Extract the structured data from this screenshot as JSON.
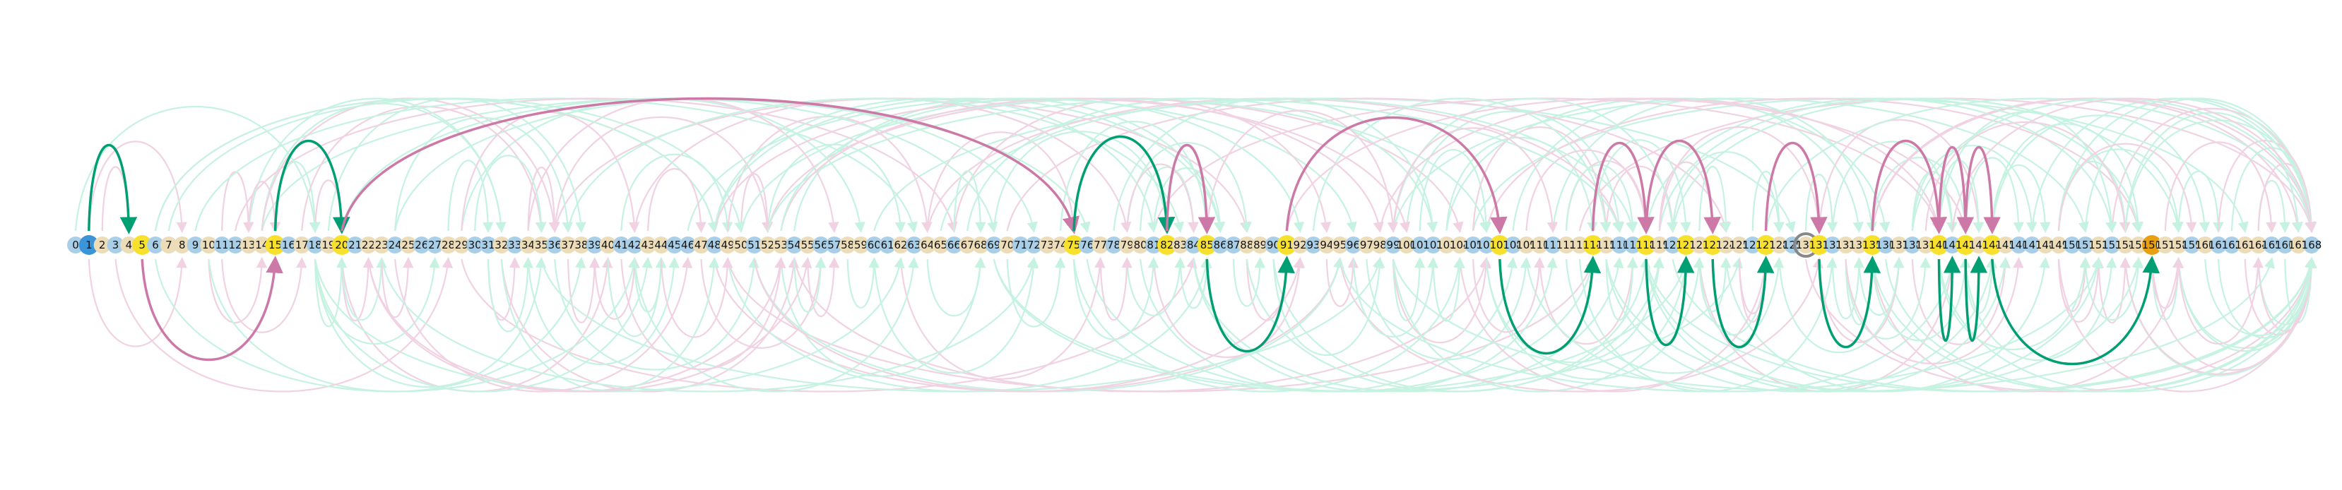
{
  "diagram": {
    "node_labels": [
      "0",
      "1",
      "2",
      "3",
      "4",
      "5",
      "6",
      "7",
      "8",
      "9",
      "10",
      "11",
      "12",
      "13",
      "14",
      "15",
      "16",
      "17",
      "18",
      "19",
      "20",
      "21",
      "22",
      "23",
      "24",
      "25",
      "26",
      "27",
      "28",
      "29",
      "30",
      "31",
      "32",
      "33",
      "34",
      "35",
      "36",
      "37",
      "38",
      "39",
      "40",
      "41",
      "42",
      "43",
      "44",
      "45",
      "46",
      "47",
      "48",
      "49",
      "50",
      "51",
      "52",
      "53",
      "54",
      "55",
      "56",
      "57",
      "58",
      "59",
      "60",
      "61",
      "62",
      "63",
      "64",
      "65",
      "66",
      "67",
      "68",
      "69",
      "70",
      "71",
      "72",
      "73",
      "74",
      "75",
      "76",
      "77",
      "78",
      "79",
      "80",
      "81",
      "82",
      "83",
      "84",
      "85",
      "86",
      "87",
      "88",
      "89",
      "90",
      "91",
      "92",
      "93",
      "94",
      "95",
      "96",
      "97",
      "98",
      "99",
      "100",
      "101",
      "102",
      "103",
      "104",
      "105",
      "106",
      "107",
      "108",
      "109",
      "110",
      "111",
      "112",
      "113",
      "114",
      "115",
      "116",
      "117",
      "118",
      "119",
      "120",
      "121",
      "122",
      "123",
      "124",
      "125",
      "126",
      "127",
      "128",
      "129",
      "130",
      "131",
      "132",
      "133",
      "134",
      "135",
      "136",
      "137",
      "138",
      "139",
      "140",
      "141",
      "142",
      "143",
      "144",
      "145",
      "146",
      "147",
      "148",
      "149",
      "150",
      "151",
      "152",
      "153",
      "154",
      "155",
      "156",
      "157",
      "158",
      "159",
      "160",
      "161",
      "162",
      "163",
      "164",
      "165",
      "166",
      "167",
      "168"
    ],
    "highlighted_nodes": [
      5,
      15,
      20,
      75,
      82,
      85,
      91,
      107,
      114,
      118,
      121,
      123,
      127,
      131,
      135,
      140,
      142,
      144
    ],
    "orange_node": 156,
    "blue_node": 1,
    "ring_node": 130,
    "colors": {
      "green_strong": "#009e73",
      "green_faint": "#c6f2e2",
      "pink_strong": "#cc79a7",
      "pink_faint": "#f0d2e2",
      "node_blue": "#a9cfe8",
      "node_tan": "#ecdcb8",
      "node_yellow": "#f7e12c",
      "node_orange": "#e8a012",
      "node_darkblue": "#3b93d8",
      "ring": "#888888"
    },
    "strong_edges": [
      {
        "from": 1,
        "to": 4,
        "side": "top",
        "color": "green"
      },
      {
        "from": 15,
        "to": 20,
        "side": "top",
        "color": "green"
      },
      {
        "from": 20,
        "to": 75,
        "side": "top",
        "color": "pink"
      },
      {
        "from": 75,
        "to": 82,
        "side": "top",
        "color": "green"
      },
      {
        "from": 82,
        "to": 85,
        "side": "top",
        "color": "pink"
      },
      {
        "from": 91,
        "to": 107,
        "side": "top",
        "color": "pink"
      },
      {
        "from": 114,
        "to": 118,
        "side": "top",
        "color": "pink"
      },
      {
        "from": 118,
        "to": 123,
        "side": "top",
        "color": "pink"
      },
      {
        "from": 127,
        "to": 131,
        "side": "top",
        "color": "pink"
      },
      {
        "from": 135,
        "to": 140,
        "side": "top",
        "color": "pink"
      },
      {
        "from": 140,
        "to": 142,
        "side": "top",
        "color": "pink"
      },
      {
        "from": 142,
        "to": 144,
        "side": "top",
        "color": "pink"
      },
      {
        "from": 5,
        "to": 15,
        "side": "bottom",
        "color": "pink"
      },
      {
        "from": 85,
        "to": 91,
        "side": "bottom",
        "color": "green"
      },
      {
        "from": 107,
        "to": 114,
        "side": "bottom",
        "color": "green"
      },
      {
        "from": 118,
        "to": 121,
        "side": "bottom",
        "color": "green"
      },
      {
        "from": 123,
        "to": 127,
        "side": "bottom",
        "color": "green"
      },
      {
        "from": 131,
        "to": 135,
        "side": "bottom",
        "color": "green"
      },
      {
        "from": 140,
        "to": 141,
        "side": "bottom",
        "color": "green"
      },
      {
        "from": 142,
        "to": 143,
        "side": "bottom",
        "color": "green"
      },
      {
        "from": 144,
        "to": 156,
        "side": "bottom",
        "color": "green"
      }
    ]
  }
}
